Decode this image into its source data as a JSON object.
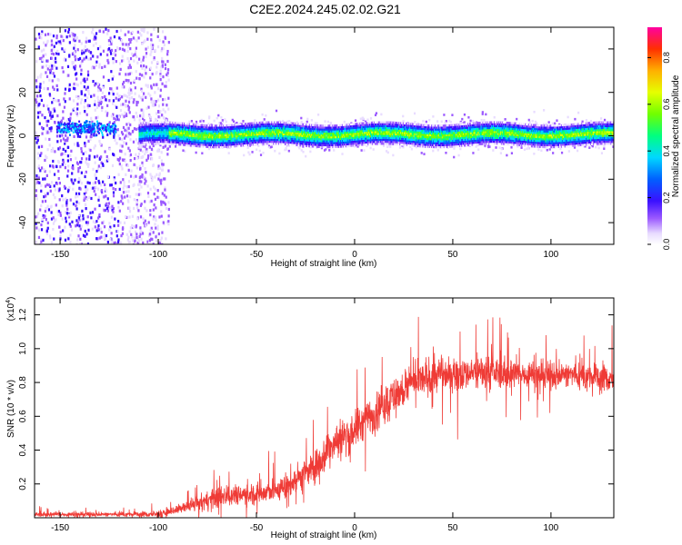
{
  "title": "C2E2.2024.245.02.02.G21",
  "chart_data": [
    {
      "type": "heatmap",
      "xlabel": "Height of straight line (km)",
      "ylabel": "Frequency (Hz)",
      "xlim": [
        -163,
        132
      ],
      "ylim": [
        -50,
        50
      ],
      "xticks": [
        -150,
        -100,
        -50,
        0,
        50,
        100
      ],
      "yticks": [
        -40,
        -20,
        0,
        20,
        40
      ],
      "grid": false,
      "colorbar": {
        "label": "Normalized spectral amplitude",
        "range": [
          0,
          0.93
        ],
        "ticks": [
          0.0,
          0.2,
          0.4,
          0.6,
          0.8
        ]
      },
      "signal_band": {
        "center_frequency_hz": 1,
        "half_width_hz": 5,
        "x_start_km": -110,
        "x_end_km": 132
      },
      "noise_region_km": [
        -163,
        -95
      ]
    },
    {
      "type": "line",
      "xlabel": "Height of straight line (km)",
      "ylabel": "SNR (10 * v/v)",
      "yscale_note": "(x10",
      "yscale_exp": "4",
      "xlim": [
        -163,
        132
      ],
      "ylim": [
        0,
        1.3
      ],
      "xticks": [
        -150,
        -100,
        -50,
        0,
        50,
        100
      ],
      "yticks": [
        0.2,
        0.4,
        0.6,
        0.8,
        1.0,
        1.2
      ],
      "grid": false,
      "series": [
        {
          "color": "#ef3b36",
          "envelope_x": [
            -163,
            -140,
            -120,
            -100,
            -90,
            -80,
            -70,
            -60,
            -50,
            -40,
            -30,
            -20,
            -15,
            -10,
            -5,
            0,
            10,
            20,
            30,
            40,
            50,
            60,
            70,
            80,
            90,
            100,
            110,
            120,
            132
          ],
          "envelope_mean": [
            0.02,
            0.02,
            0.02,
            0.02,
            0.05,
            0.08,
            0.12,
            0.14,
            0.14,
            0.16,
            0.22,
            0.3,
            0.38,
            0.45,
            0.48,
            0.52,
            0.62,
            0.72,
            0.8,
            0.84,
            0.85,
            0.86,
            0.86,
            0.85,
            0.85,
            0.84,
            0.85,
            0.83,
            0.82
          ],
          "envelope_spread": [
            0.02,
            0.02,
            0.02,
            0.03,
            0.04,
            0.07,
            0.09,
            0.09,
            0.1,
            0.11,
            0.13,
            0.15,
            0.16,
            0.17,
            0.18,
            0.18,
            0.18,
            0.18,
            0.17,
            0.16,
            0.15,
            0.15,
            0.14,
            0.13,
            0.12,
            0.12,
            0.12,
            0.13,
            0.14
          ]
        }
      ]
    }
  ]
}
